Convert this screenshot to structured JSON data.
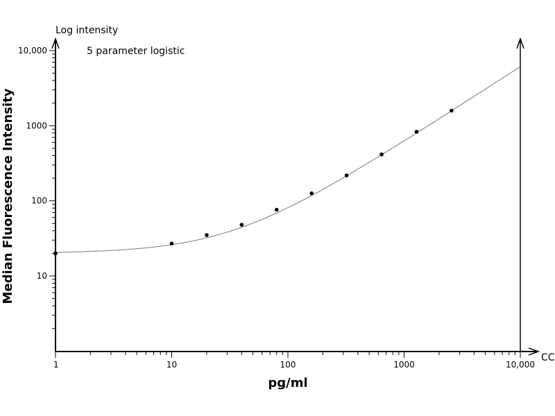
{
  "chart_data": {
    "type": "scatter",
    "title": "5 parameter logistic",
    "xlabel": "pg/ml",
    "ylabel": "Median Fluorescence Intensity",
    "x_axis_end_label": "CC",
    "y_axis_top_label": "Log intensity",
    "x_scale": "log",
    "y_scale": "log",
    "xlim": [
      1,
      10000
    ],
    "ylim": [
      1,
      10000
    ],
    "x_ticks": [
      {
        "value": 1,
        "label": "1"
      },
      {
        "value": 10,
        "label": "10"
      },
      {
        "value": 100,
        "label": "100"
      },
      {
        "value": 1000,
        "label": "1000"
      },
      {
        "value": 10000,
        "label": "10,000"
      }
    ],
    "y_ticks": [
      {
        "value": 10,
        "label": "10"
      },
      {
        "value": 100,
        "label": "100"
      },
      {
        "value": 1000,
        "label": "1000"
      },
      {
        "value": 10000,
        "label": "10,000"
      }
    ],
    "grid": false,
    "points": [
      {
        "x": 1,
        "y": 20
      },
      {
        "x": 10,
        "y": 27
      },
      {
        "x": 20,
        "y": 35
      },
      {
        "x": 40,
        "y": 48
      },
      {
        "x": 80,
        "y": 76
      },
      {
        "x": 160,
        "y": 126
      },
      {
        "x": 320,
        "y": 218
      },
      {
        "x": 640,
        "y": 415
      },
      {
        "x": 1280,
        "y": 830
      },
      {
        "x": 2560,
        "y": 1590
      }
    ],
    "colors": {
      "points": "#000000",
      "curve": "#777777",
      "axes": "#000000"
    }
  }
}
